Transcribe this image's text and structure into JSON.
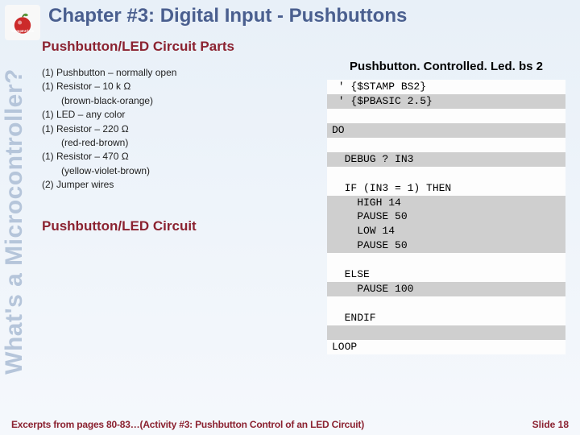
{
  "logo": {
    "name": "stamp-in-class-logo"
  },
  "title": "Chapter #3: Digital Input - Pushbuttons",
  "vertical_label": "What's a Microcontroller?",
  "sections": {
    "parts_heading": "Pushbutton/LED Circuit Parts",
    "circuit_heading": "Pushbutton/LED Circuit",
    "parts": [
      {
        "text": "(1) Pushbutton – normally open",
        "indent": false
      },
      {
        "text": "(1) Resistor – 10 k Ω",
        "indent": false
      },
      {
        "text": "(brown-black-orange)",
        "indent": true
      },
      {
        "text": "(1) LED – any color",
        "indent": false
      },
      {
        "text": "(1) Resistor – 220 Ω",
        "indent": false
      },
      {
        "text": "(red-red-brown)",
        "indent": true
      },
      {
        "text": "(1) Resistor – 470 Ω",
        "indent": false
      },
      {
        "text": "(yellow-violet-brown)",
        "indent": true
      },
      {
        "text": "(2) Jumper wires",
        "indent": false
      }
    ]
  },
  "code": {
    "title": "Pushbutton. Controlled. Led. bs 2",
    "lines": [
      {
        "t": " ' {$STAMP BS2}",
        "shade": false
      },
      {
        "t": " ' {$PBASIC 2.5}",
        "shade": true
      },
      {
        "t": "",
        "shade": false
      },
      {
        "t": "DO",
        "shade": true
      },
      {
        "t": "",
        "shade": false
      },
      {
        "t": "  DEBUG ? IN3",
        "shade": true
      },
      {
        "t": "",
        "shade": false
      },
      {
        "t": "  IF (IN3 = 1) THEN",
        "shade": false
      },
      {
        "t": "    HIGH 14",
        "shade": true
      },
      {
        "t": "    PAUSE 50",
        "shade": true
      },
      {
        "t": "    LOW 14",
        "shade": true
      },
      {
        "t": "    PAUSE 50",
        "shade": true
      },
      {
        "t": "",
        "shade": false
      },
      {
        "t": "  ELSE",
        "shade": false
      },
      {
        "t": "    PAUSE 100",
        "shade": true
      },
      {
        "t": "",
        "shade": false
      },
      {
        "t": "  ENDIF",
        "shade": false
      },
      {
        "t": "",
        "shade": true
      },
      {
        "t": "LOOP",
        "shade": false
      }
    ]
  },
  "footer": {
    "excerpt": "Excerpts from pages 80-83…(Activity #3: Pushbutton Control of an LED Circuit)",
    "slide": "Slide 18"
  },
  "colors": {
    "title": "#4a5f8f",
    "heading": "#8b2230",
    "vertical": "#b5c5da",
    "shade": "#cfcfcf",
    "bg_top": "#e8f0f8",
    "bg_bottom": "#f5f8fc"
  },
  "fontsizes": {
    "title": 24,
    "vertical": 30,
    "heading": 17,
    "parts": 12,
    "code_title": 15,
    "code": 13,
    "footer": 12
  }
}
